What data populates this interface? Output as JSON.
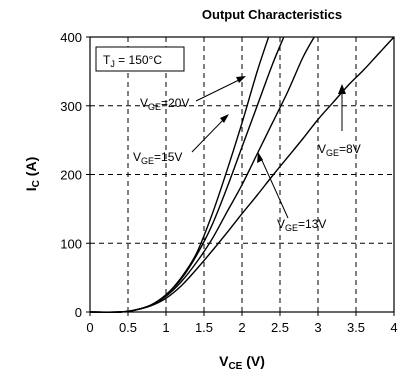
{
  "chart_data": {
    "type": "line",
    "title": "Output Characteristics",
    "xlabel": {
      "main": "V",
      "sub": "CE",
      "unit": " (V)"
    },
    "ylabel": {
      "main": "I",
      "sub": "C",
      "unit": " (A)"
    },
    "xlim": [
      0,
      4
    ],
    "ylim": [
      0,
      400
    ],
    "xticks": [
      0,
      0.5,
      1,
      1.5,
      2,
      2.5,
      3,
      3.5,
      4
    ],
    "xtick_labels": [
      "0",
      "0.5",
      "1",
      "1.5",
      "2",
      "2.5",
      "3",
      "3.5",
      "4"
    ],
    "yticks": [
      0,
      100,
      200,
      300,
      400
    ],
    "ytick_labels": [
      "0",
      "100",
      "200",
      "300",
      "400"
    ],
    "grid": true,
    "condition_box": {
      "main": "T",
      "sub": "J",
      "rest": " = 150°C"
    },
    "series": [
      {
        "name": "VGE=20V",
        "label_main": "V",
        "label_sub": "GE",
        "label_rest": "=20V",
        "x": [
          0,
          0.4,
          0.6,
          0.8,
          1.0,
          1.2,
          1.4,
          1.6,
          1.8,
          2.0,
          2.2,
          2.35
        ],
        "y": [
          0,
          0,
          3,
          10,
          25,
          50,
          85,
          140,
          205,
          275,
          350,
          400
        ]
      },
      {
        "name": "VGE=15V",
        "label_main": "V",
        "label_sub": "GE",
        "label_rest": "=15V",
        "x": [
          0,
          0.4,
          0.6,
          0.8,
          1.0,
          1.2,
          1.4,
          1.6,
          1.8,
          2.0,
          2.2,
          2.4,
          2.55
        ],
        "y": [
          0,
          0,
          3,
          10,
          25,
          48,
          82,
          125,
          180,
          240,
          300,
          360,
          400
        ]
      },
      {
        "name": "VGE=13V",
        "label_main": "V",
        "label_sub": "GE",
        "label_rest": "=13V",
        "x": [
          0,
          0.4,
          0.6,
          0.8,
          1.0,
          1.2,
          1.4,
          1.6,
          1.8,
          2.0,
          2.2,
          2.4,
          2.6,
          2.8,
          2.95
        ],
        "y": [
          0,
          0,
          3,
          10,
          23,
          44,
          72,
          105,
          145,
          185,
          230,
          275,
          320,
          370,
          400
        ]
      },
      {
        "name": "VGE=8V",
        "label_main": "V",
        "label_sub": "GE",
        "label_rest": "=8V",
        "x": [
          0,
          0.4,
          0.6,
          0.8,
          1.0,
          1.2,
          1.4,
          1.6,
          1.8,
          2.0,
          2.2,
          2.4,
          2.6,
          2.8,
          3.0,
          3.2,
          3.4,
          3.6,
          3.8,
          4.0
        ],
        "y": [
          0,
          0,
          3,
          9,
          20,
          38,
          62,
          88,
          115,
          143,
          170,
          198,
          225,
          252,
          280,
          305,
          330,
          352,
          376,
          400
        ]
      }
    ]
  }
}
